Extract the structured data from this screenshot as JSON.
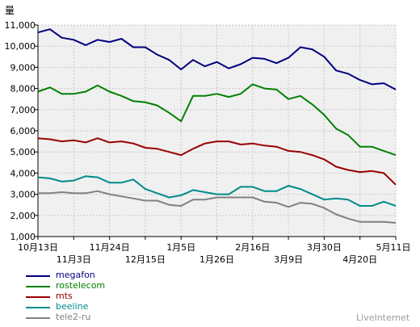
{
  "chart_data": {
    "type": "line",
    "ylabel": "量",
    "ylim": [
      1000,
      11000
    ],
    "yticks": [
      "1,000",
      "2,000",
      "3,000",
      "4,000",
      "5,000",
      "6,000",
      "7,000",
      "8,000",
      "9,000",
      "10,000",
      "11,000"
    ],
    "x_tick_labels": [
      {
        "label": "10月13日",
        "row": 1,
        "index": 0
      },
      {
        "label": "11月3日",
        "row": 2,
        "index": 3
      },
      {
        "label": "11月24日",
        "row": 1,
        "index": 6
      },
      {
        "label": "12月15日",
        "row": 2,
        "index": 9
      },
      {
        "label": "1月5日",
        "row": 1,
        "index": 12
      },
      {
        "label": "1月26日",
        "row": 2,
        "index": 15
      },
      {
        "label": "2月16日",
        "row": 1,
        "index": 18
      },
      {
        "label": "3月9日",
        "row": 2,
        "index": 21
      },
      {
        "label": "3月30日",
        "row": 1,
        "index": 24
      },
      {
        "label": "4月20日",
        "row": 2,
        "index": 27
      },
      {
        "label": "5月11日",
        "row": 1,
        "index": 30
      }
    ],
    "num_points": 31,
    "grid": true,
    "legend_position": "bottom-left",
    "series": [
      {
        "name": "megafon",
        "color": "#000080",
        "values": [
          10650,
          10800,
          10400,
          10300,
          10050,
          10300,
          10200,
          10350,
          9950,
          9950,
          9600,
          9350,
          8900,
          9350,
          9050,
          9250,
          8950,
          9150,
          9450,
          9400,
          9200,
          9450,
          9950,
          9850,
          9500,
          8850,
          8700,
          8400,
          8200,
          8250,
          7950
        ]
      },
      {
        "name": "rostelecom",
        "color": "#008000",
        "values": [
          7850,
          8050,
          7750,
          7750,
          7850,
          8150,
          7850,
          7650,
          7400,
          7350,
          7200,
          6850,
          6450,
          7650,
          7650,
          7750,
          7600,
          7750,
          8200,
          8000,
          7950,
          7500,
          7650,
          7250,
          6750,
          6100,
          5800,
          5250,
          5250,
          5050,
          4850
        ]
      },
      {
        "name": "mts",
        "color": "#990000",
        "values": [
          5650,
          5600,
          5500,
          5550,
          5450,
          5650,
          5450,
          5500,
          5400,
          5200,
          5150,
          5000,
          4850,
          5150,
          5400,
          5500,
          5500,
          5350,
          5400,
          5300,
          5250,
          5050,
          5000,
          4850,
          4650,
          4300,
          4150,
          4050,
          4100,
          4000,
          3450
        ]
      },
      {
        "name": "beeline",
        "color": "#008b8b",
        "values": [
          3800,
          3750,
          3600,
          3650,
          3850,
          3800,
          3550,
          3550,
          3700,
          3250,
          3050,
          2850,
          2950,
          3200,
          3100,
          3000,
          3000,
          3350,
          3350,
          3150,
          3150,
          3400,
          3250,
          3000,
          2750,
          2800,
          2750,
          2450,
          2450,
          2650,
          2450
        ]
      },
      {
        "name": "tele2-ru",
        "color": "#808080",
        "values": [
          3050,
          3050,
          3100,
          3050,
          3050,
          3150,
          3000,
          2900,
          2800,
          2700,
          2700,
          2500,
          2450,
          2750,
          2750,
          2850,
          2850,
          2850,
          2850,
          2650,
          2600,
          2400,
          2600,
          2550,
          2350,
          2050,
          1850,
          1700,
          1700,
          1700,
          1650
        ]
      }
    ]
  },
  "watermark": "LiveInternet"
}
